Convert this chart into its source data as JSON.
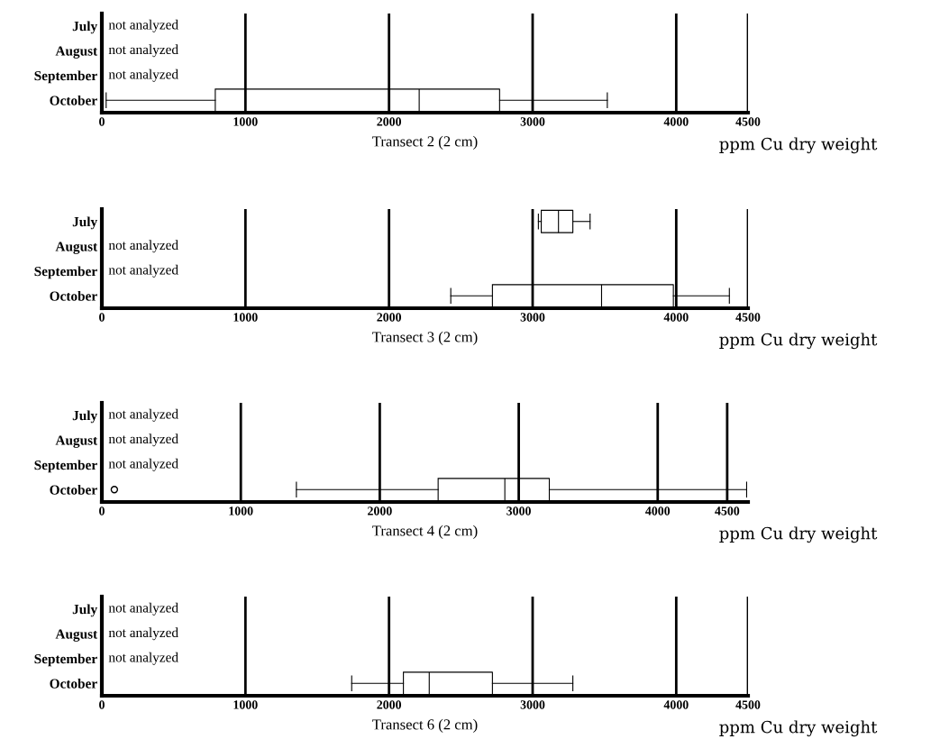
{
  "chart_data": [
    {
      "type": "box",
      "categories": [
        "July",
        "August",
        "September",
        "October"
      ],
      "xlabel": "Transect 2 (2 cm)",
      "xlim": [
        0,
        4500
      ],
      "xticks": [
        0,
        1000,
        2000,
        3000,
        4000,
        4500
      ],
      "grid": "x",
      "orientation": "horizontal",
      "boxes": [
        null,
        null,
        null,
        {
          "low": 30,
          "q1": 790,
          "median": 2210,
          "q3": 2770,
          "high": 3520
        }
      ],
      "annotations": [
        "not analyzed",
        "not analyzed",
        "not analyzed",
        "ppm Cu dry weight"
      ]
    },
    {
      "type": "box",
      "categories": [
        "July",
        "August",
        "September",
        "October"
      ],
      "xlabel": "Transect 3 (2 cm)",
      "xlim": [
        0,
        4500
      ],
      "xticks": [
        0,
        1000,
        2000,
        3000,
        4000,
        4500
      ],
      "grid": "x",
      "orientation": "horizontal",
      "boxes": [
        {
          "low": 3040,
          "q1": 3060,
          "median": 3180,
          "q3": 3280,
          "high": 3400
        },
        null,
        null,
        {
          "low": 2430,
          "q1": 2720,
          "median": 3480,
          "q3": 3980,
          "high": 4370
        }
      ],
      "annotations": [
        "not analyzed",
        "not analyzed",
        "ppm Cu dry weight"
      ]
    },
    {
      "type": "box",
      "categories": [
        "July",
        "August",
        "September",
        "October"
      ],
      "xlabel": "Transect 4 (2 cm)",
      "xlim": [
        0,
        4650
      ],
      "xticks": [
        0,
        1000,
        2000,
        3000,
        4000,
        4500
      ],
      "grid": "x",
      "orientation": "horizontal",
      "boxes": [
        null,
        null,
        null,
        {
          "low": 1400,
          "q1": 2420,
          "median": 2900,
          "q3": 3220,
          "high": 4640,
          "outliers": [
            90
          ]
        }
      ],
      "annotations": [
        "not analyzed",
        "not analyzed",
        "not analyzed",
        "ppm Cu dry weight"
      ]
    },
    {
      "type": "box",
      "categories": [
        "July",
        "August",
        "September",
        "October"
      ],
      "xlabel": "Transect 6 (2 cm)",
      "xlim": [
        0,
        4500
      ],
      "xticks": [
        0,
        1000,
        2000,
        3000,
        4000,
        4500
      ],
      "grid": "x",
      "orientation": "horizontal",
      "boxes": [
        null,
        null,
        null,
        {
          "low": 1740,
          "q1": 2100,
          "median": 2280,
          "q3": 2720,
          "high": 3280
        }
      ],
      "annotations": [
        "not analyzed",
        "not analyzed",
        "not analyzed",
        "ppm Cu dry weight"
      ]
    }
  ]
}
